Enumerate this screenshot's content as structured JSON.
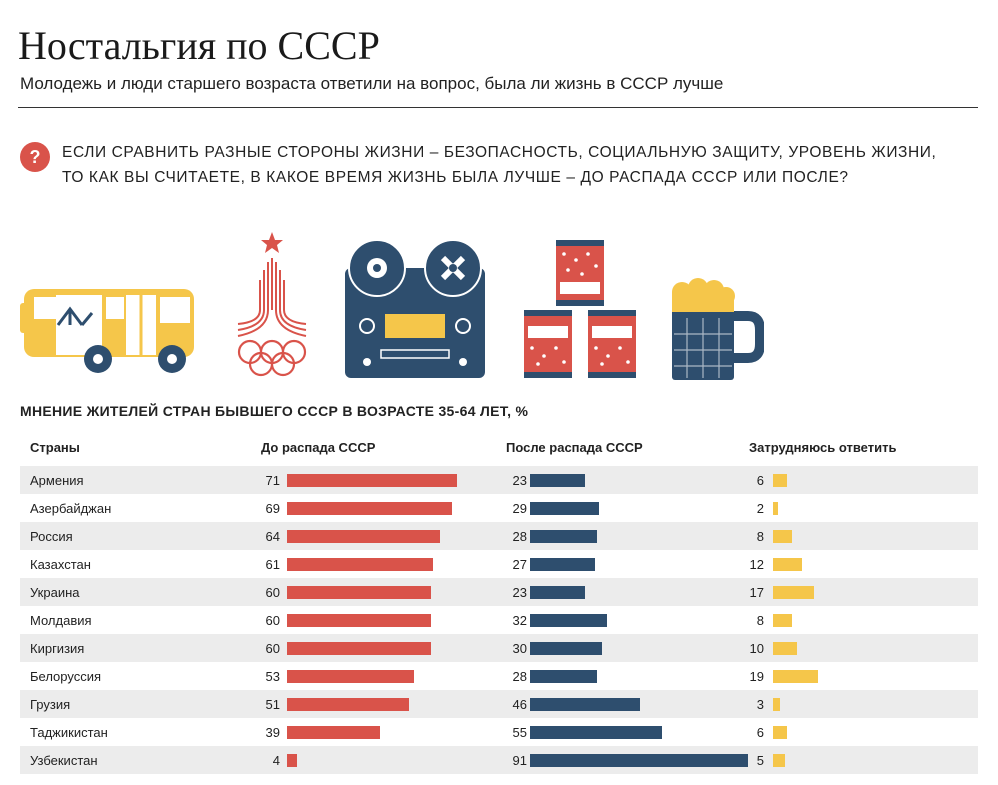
{
  "header": {
    "title": "Ностальгия по СССР",
    "subtitle": "Молодежь и люди старшего возраста ответили на вопрос, была ли жизнь в СССР лучше"
  },
  "question": {
    "icon": "question-icon",
    "mark": "?",
    "line1": "Если сравнить разные стороны жизни – безопасность, социальную защиту, уровень жизни,",
    "line2": "то как вы считаете, в какое время жизнь была лучше – до распада СССР или после?"
  },
  "illustrations": [
    "bus-icon",
    "olympics-1980-emblem-icon",
    "reel-tape-recorder-icon",
    "tin-cans-icon",
    "beer-mug-icon"
  ],
  "colors": {
    "before": "#d9534a",
    "after": "#2e4e6e",
    "hard": "#f5c64a",
    "shade": "#ececec"
  },
  "chart_data": {
    "type": "bar",
    "title": "Мнение жителей стран бывшего СССР в возрасте 35-64 лет, %",
    "category_header": "Страны",
    "categories": [
      "Армения",
      "Азербайджан",
      "Россия",
      "Казахстан",
      "Украина",
      "Молдавия",
      "Киргизия",
      "Белоруссия",
      "Грузия",
      "Таджикистан",
      "Узбекистан"
    ],
    "series": [
      {
        "name": "До распада СССР",
        "values": [
          71,
          69,
          64,
          61,
          60,
          60,
          60,
          53,
          51,
          39,
          4
        ]
      },
      {
        "name": "После распада СССР",
        "values": [
          23,
          29,
          28,
          27,
          23,
          32,
          30,
          28,
          46,
          55,
          91
        ]
      },
      {
        "name": "Затрудняюсь ответить",
        "values": [
          6,
          2,
          8,
          12,
          17,
          8,
          10,
          19,
          3,
          6,
          5
        ]
      }
    ]
  }
}
